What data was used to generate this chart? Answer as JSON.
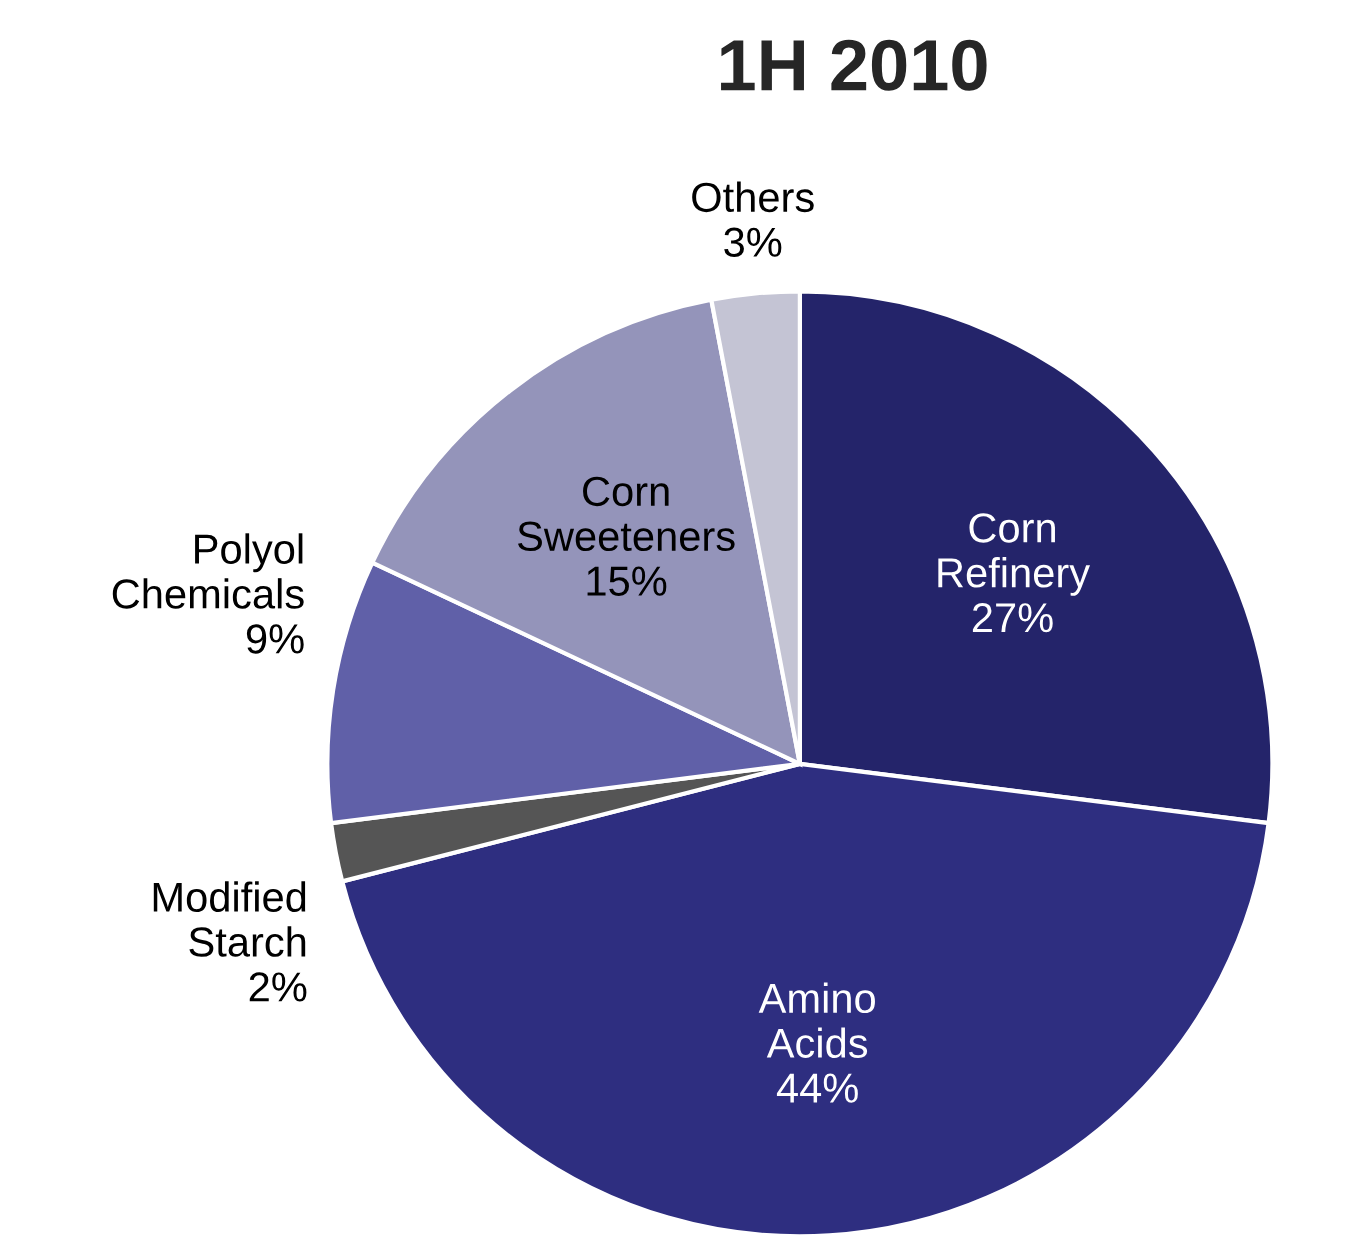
{
  "chart_data": {
    "type": "pie",
    "title": "1H 2010",
    "categories": [
      "Corn\nRefinery",
      "Amino\nAcids",
      "Modified\nStarch",
      "Polyol\nChemicals",
      "Corn\nSweeteners",
      "Others"
    ],
    "values": [
      27,
      44,
      2,
      9,
      15,
      3
    ],
    "value_labels": [
      "27%",
      "44%",
      "2%",
      "9%",
      "15%",
      "3%"
    ],
    "colors": [
      "#24246a",
      "#2e2e80",
      "#555555",
      "#6060a8",
      "#9494ba",
      "#c4c4d4"
    ]
  }
}
